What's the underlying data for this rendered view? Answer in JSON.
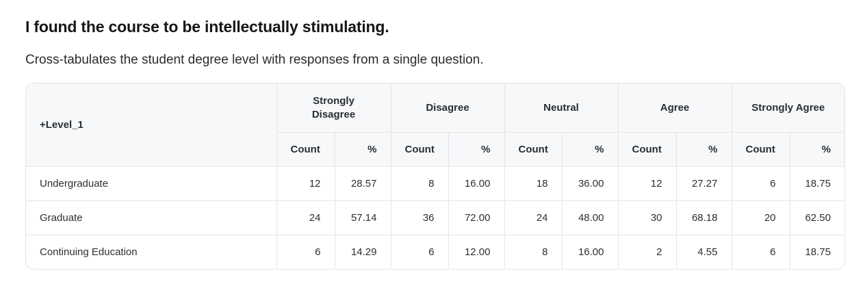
{
  "title": "I found the course to be intellectually stimulating.",
  "subtitle": "Cross-tabulates the student degree level with responses from a single question.",
  "table": {
    "row_header": "+Level_1",
    "groups": [
      {
        "label": "Strongly Disagree"
      },
      {
        "label": "Disagree"
      },
      {
        "label": "Neutral"
      },
      {
        "label": "Agree"
      },
      {
        "label": "Strongly Agree"
      }
    ],
    "sub_headers": {
      "count": "Count",
      "pct": "%"
    },
    "rows": [
      {
        "label": "Undergraduate",
        "cells": [
          {
            "count": "12",
            "pct": "28.57"
          },
          {
            "count": "8",
            "pct": "16.00"
          },
          {
            "count": "18",
            "pct": "36.00"
          },
          {
            "count": "12",
            "pct": "27.27"
          },
          {
            "count": "6",
            "pct": "18.75"
          }
        ]
      },
      {
        "label": "Graduate",
        "cells": [
          {
            "count": "24",
            "pct": "57.14"
          },
          {
            "count": "36",
            "pct": "72.00"
          },
          {
            "count": "24",
            "pct": "48.00"
          },
          {
            "count": "30",
            "pct": "68.18"
          },
          {
            "count": "20",
            "pct": "62.50"
          }
        ]
      },
      {
        "label": "Continuing Education",
        "cells": [
          {
            "count": "6",
            "pct": "14.29"
          },
          {
            "count": "6",
            "pct": "12.00"
          },
          {
            "count": "8",
            "pct": "16.00"
          },
          {
            "count": "2",
            "pct": "4.55"
          },
          {
            "count": "6",
            "pct": "18.75"
          }
        ]
      }
    ]
  }
}
